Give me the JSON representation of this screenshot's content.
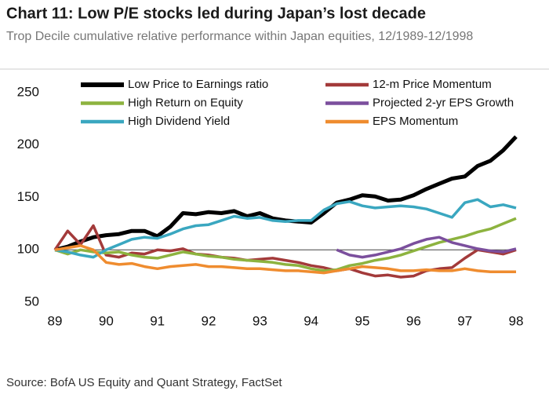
{
  "chart_data": {
    "type": "line",
    "title": "Chart 11: Low P/E stocks led during Japan’s lost decade",
    "subtitle": "Trop Decile cumulative relative performance within Japan equities, 12/1989-12/1998",
    "source": "Source: BofA US Equity and Quant Strategy, FactSet",
    "x": [
      89,
      89.25,
      89.5,
      89.75,
      90,
      90.25,
      90.5,
      90.75,
      91,
      91.25,
      91.5,
      91.75,
      92,
      92.25,
      92.5,
      92.75,
      93,
      93.25,
      93.5,
      93.75,
      94,
      94.25,
      94.5,
      94.75,
      95,
      95.25,
      95.5,
      95.75,
      96,
      96.25,
      96.5,
      96.75,
      97,
      97.25,
      97.5,
      97.75,
      98
    ],
    "xlim": [
      89,
      98
    ],
    "xticks": [
      89,
      90,
      91,
      92,
      93,
      94,
      95,
      96,
      97,
      98
    ],
    "ylim": [
      50,
      250
    ],
    "yticks": [
      50,
      100,
      150,
      200,
      250
    ],
    "reference_line": 100,
    "series": [
      {
        "name": "Low Price to Earnings ratio",
        "color": "#000000",
        "width": 5,
        "values": [
          100,
          103,
          108,
          112,
          114,
          115,
          118,
          118,
          113,
          122,
          135,
          134,
          136,
          135,
          137,
          132,
          135,
          130,
          128,
          127,
          126,
          135,
          145,
          148,
          152,
          151,
          147,
          148,
          152,
          158,
          163,
          168,
          170,
          180,
          185,
          195,
          208
        ]
      },
      {
        "name": "12-m Price Momentum",
        "color": "#a33a3a",
        "width": 3.5,
        "values": [
          100,
          118,
          105,
          123,
          95,
          93,
          97,
          96,
          100,
          99,
          101,
          96,
          95,
          93,
          92,
          90,
          91,
          92,
          90,
          88,
          85,
          83,
          80,
          82,
          78,
          75,
          76,
          74,
          75,
          80,
          82,
          83,
          92,
          100,
          98,
          96,
          100
        ]
      },
      {
        "name": "High Return on Equity",
        "color": "#8db33f",
        "width": 3.5,
        "values": [
          100,
          96,
          100,
          98,
          97,
          98,
          95,
          93,
          92,
          95,
          98,
          96,
          94,
          93,
          91,
          90,
          89,
          88,
          86,
          85,
          82,
          80,
          81,
          85,
          87,
          90,
          92,
          95,
          99,
          103,
          107,
          110,
          113,
          117,
          120,
          125,
          130
        ]
      },
      {
        "name": "Projected 2-yr EPS Growth",
        "color": "#7b4f9d",
        "width": 3.5,
        "values": [
          null,
          null,
          null,
          null,
          null,
          null,
          null,
          null,
          null,
          null,
          null,
          null,
          null,
          null,
          null,
          null,
          null,
          null,
          null,
          null,
          null,
          null,
          100,
          95,
          93,
          95,
          98,
          101,
          106,
          110,
          112,
          107,
          104,
          101,
          99,
          98,
          101
        ]
      },
      {
        "name": "High Dividend Yield",
        "color": "#3aa7c0",
        "width": 3.5,
        "values": [
          100,
          98,
          95,
          93,
          100,
          105,
          110,
          112,
          111,
          115,
          120,
          123,
          124,
          128,
          132,
          130,
          131,
          128,
          127,
          128,
          128,
          138,
          144,
          146,
          142,
          140,
          141,
          142,
          141,
          139,
          135,
          131,
          145,
          148,
          141,
          143,
          140
        ]
      },
      {
        "name": "EPS Momentum",
        "color": "#ef8c2f",
        "width": 3.5,
        "values": [
          100,
          102,
          104,
          100,
          88,
          86,
          87,
          84,
          82,
          84,
          85,
          86,
          84,
          84,
          83,
          82,
          82,
          81,
          80,
          80,
          79,
          78,
          80,
          82,
          84,
          83,
          82,
          80,
          80,
          81,
          80,
          80,
          82,
          80,
          79,
          79,
          79
        ]
      }
    ]
  }
}
